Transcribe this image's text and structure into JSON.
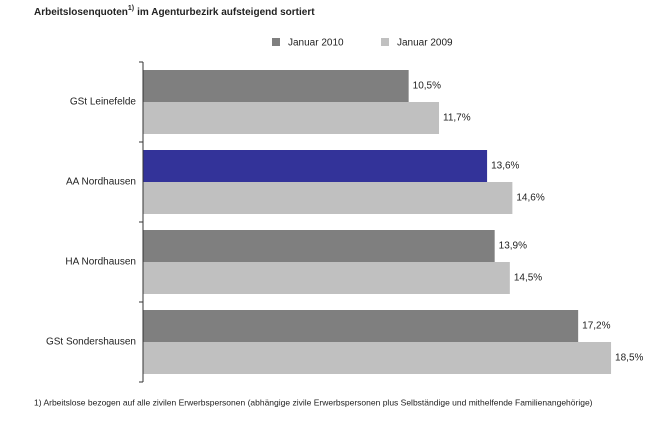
{
  "chart_data": {
    "type": "hbar",
    "title": "Arbeitslosenquoten",
    "title_superscript": "1)",
    "title_rest": "im Agenturbezirk aufsteigend sortiert",
    "categories": [
      "GSt Leinefelde",
      "AA Nordhausen",
      "HA Nordhausen",
      "GSt Sondershausen"
    ],
    "series": [
      {
        "name": "Januar 2010",
        "color": "#7f7f7f",
        "colors": [
          "#7f7f7f",
          "#333399",
          "#7f7f7f",
          "#7f7f7f"
        ],
        "values": [
          10.5,
          13.6,
          13.9,
          17.2
        ],
        "value_labels": [
          "10,5%",
          "13,6%",
          "13,9%",
          "17,2%"
        ]
      },
      {
        "name": "Januar 2009",
        "color": "#c0c0c0",
        "values": [
          11.7,
          14.6,
          14.5,
          18.5
        ],
        "value_labels": [
          "11,7%",
          "14,6%",
          "14,5%",
          "18,5%"
        ]
      }
    ],
    "xlim": [
      0,
      20
    ],
    "footnote": "1) Arbeitslose bezogen auf alle zivilen Erwerbspersonen (abhängige zivile Erwerbspersonen plus Selbständige und mithelfende Familienangehörige)"
  }
}
